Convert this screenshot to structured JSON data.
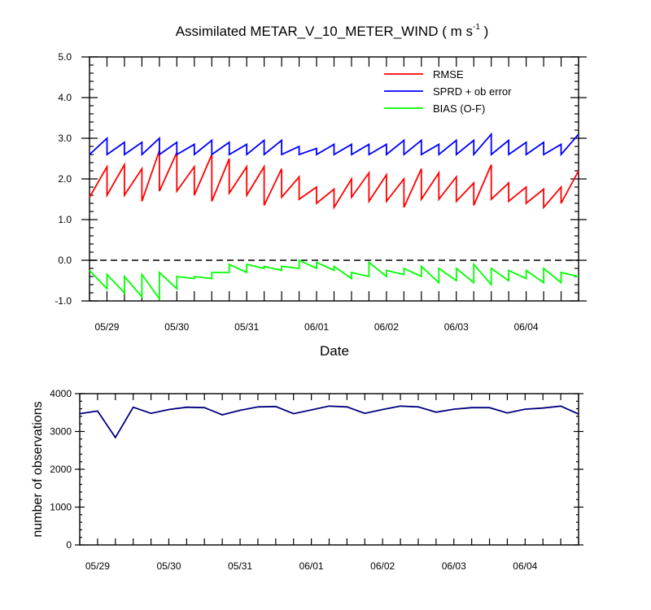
{
  "colors": {
    "rmse": "#ff0000",
    "spread": "#0000ff",
    "bias": "#00ff00",
    "nobs": "#000080",
    "zero_line": "#000000"
  },
  "chart_data": [
    {
      "type": "line",
      "title_main": "Assimilated METAR_V_10_METER_WIND ( m s",
      "title_sup": "-1",
      "title_end": " )",
      "xlabel": "Date",
      "ylabel": "",
      "ylim": [
        -1.0,
        5.0
      ],
      "yticks": [
        -1.0,
        0.0,
        1.0,
        2.0,
        3.0,
        4.0,
        5.0
      ],
      "ytick_labels": [
        "-1.0",
        "0.0",
        "1.0",
        "2.0",
        "3.0",
        "4.0",
        "5.0"
      ],
      "xlim": [
        0,
        28
      ],
      "xtick_positions": [
        1,
        5,
        9,
        13,
        17,
        21,
        25
      ],
      "xtick_labels": [
        "05/29",
        "05/30",
        "05/31",
        "06/01",
        "06/02",
        "06/03",
        "06/04"
      ],
      "zero_line": 0.0,
      "legend": [
        "RMSE",
        "SPRD + ob error",
        "BIAS (O-F)"
      ],
      "series": [
        {
          "name": "RMSE",
          "color_key": "rmse",
          "x": [
            0,
            1,
            1,
            2,
            2,
            3,
            3,
            4,
            4,
            5,
            5,
            6,
            6,
            7,
            7,
            8,
            8,
            9,
            9,
            10,
            10,
            11,
            11,
            12,
            12,
            13,
            13,
            14,
            14,
            15,
            15,
            16,
            16,
            17,
            17,
            18,
            18,
            19,
            19,
            20,
            20,
            21,
            21,
            22,
            22,
            23,
            23,
            24,
            24,
            25,
            25,
            26,
            26,
            27,
            27,
            28
          ],
          "values": [
            1.55,
            2.3,
            1.6,
            2.35,
            1.6,
            2.25,
            1.45,
            2.7,
            1.7,
            2.65,
            1.7,
            2.3,
            1.6,
            2.6,
            1.45,
            2.5,
            1.65,
            2.3,
            1.6,
            2.3,
            1.35,
            2.25,
            1.55,
            2.05,
            1.5,
            1.8,
            1.4,
            1.75,
            1.3,
            2.0,
            1.55,
            2.15,
            1.45,
            2.1,
            1.45,
            2.0,
            1.3,
            2.25,
            1.5,
            2.15,
            1.5,
            2.05,
            1.45,
            1.9,
            1.35,
            2.35,
            1.5,
            1.9,
            1.45,
            1.8,
            1.4,
            1.75,
            1.3,
            1.8,
            1.4,
            2.2
          ]
        },
        {
          "name": "SPRD + ob error",
          "color_key": "spread",
          "x": [
            0,
            1,
            1,
            2,
            2,
            3,
            3,
            4,
            4,
            5,
            5,
            6,
            6,
            7,
            7,
            8,
            8,
            9,
            9,
            10,
            10,
            11,
            11,
            12,
            12,
            13,
            13,
            14,
            14,
            15,
            15,
            16,
            16,
            17,
            17,
            18,
            18,
            19,
            19,
            20,
            20,
            21,
            21,
            22,
            22,
            23,
            23,
            24,
            24,
            25,
            25,
            26,
            26,
            27,
            27,
            28
          ],
          "values": [
            2.6,
            3.0,
            2.6,
            2.9,
            2.6,
            2.9,
            2.6,
            3.0,
            2.6,
            2.9,
            2.6,
            2.85,
            2.6,
            2.95,
            2.6,
            2.9,
            2.6,
            2.85,
            2.6,
            2.95,
            2.6,
            2.95,
            2.6,
            2.8,
            2.6,
            2.75,
            2.6,
            2.85,
            2.6,
            2.85,
            2.6,
            2.85,
            2.6,
            2.85,
            2.6,
            2.95,
            2.6,
            2.95,
            2.6,
            2.85,
            2.6,
            2.95,
            2.6,
            2.95,
            2.6,
            3.1,
            2.6,
            2.95,
            2.6,
            2.9,
            2.6,
            2.9,
            2.6,
            2.85,
            2.6,
            3.1
          ]
        },
        {
          "name": "BIAS (O-F)",
          "color_key": "bias",
          "x": [
            0,
            1,
            1,
            2,
            2,
            3,
            3,
            4,
            4,
            5,
            5,
            6,
            6,
            7,
            7,
            8,
            8,
            9,
            9,
            10,
            10,
            11,
            11,
            12,
            12,
            13,
            13,
            14,
            14,
            15,
            15,
            16,
            16,
            17,
            17,
            18,
            18,
            19,
            19,
            20,
            20,
            21,
            21,
            22,
            22,
            23,
            23,
            24,
            24,
            25,
            25,
            26,
            26,
            27,
            27,
            28
          ],
          "values": [
            -0.25,
            -0.7,
            -0.35,
            -0.8,
            -0.4,
            -0.9,
            -0.35,
            -0.95,
            -0.3,
            -0.7,
            -0.4,
            -0.45,
            -0.4,
            -0.45,
            -0.3,
            -0.3,
            -0.1,
            -0.3,
            -0.1,
            -0.2,
            -0.15,
            -0.25,
            -0.15,
            -0.2,
            0.0,
            -0.2,
            -0.05,
            -0.25,
            -0.15,
            -0.45,
            -0.3,
            -0.4,
            -0.05,
            -0.4,
            -0.25,
            -0.35,
            -0.2,
            -0.4,
            -0.15,
            -0.55,
            -0.2,
            -0.5,
            -0.2,
            -0.55,
            -0.1,
            -0.6,
            -0.2,
            -0.5,
            -0.25,
            -0.45,
            -0.25,
            -0.55,
            -0.2,
            -0.55,
            -0.3,
            -0.4
          ]
        }
      ]
    },
    {
      "type": "line",
      "title": "",
      "xlabel": "",
      "ylabel": "number of observations",
      "ylim": [
        0,
        4000
      ],
      "yticks": [
        0,
        1000,
        2000,
        3000,
        4000
      ],
      "ytick_labels": [
        "0",
        "1000",
        "2000",
        "3000",
        "4000"
      ],
      "xlim": [
        0,
        28
      ],
      "xtick_positions": [
        1,
        5,
        9,
        13,
        17,
        21,
        25
      ],
      "xtick_labels": [
        "05/29",
        "05/30",
        "05/31",
        "06/01",
        "06/02",
        "06/03",
        "06/04"
      ],
      "series": [
        {
          "name": "number of observations",
          "color_key": "nobs",
          "x": [
            0,
            1,
            2,
            3,
            4,
            5,
            6,
            7,
            8,
            9,
            10,
            11,
            12,
            13,
            14,
            15,
            16,
            17,
            18,
            19,
            20,
            21,
            22,
            23,
            24,
            25,
            26,
            27,
            28
          ],
          "values": [
            3470,
            3540,
            2840,
            3640,
            3480,
            3580,
            3640,
            3630,
            3440,
            3560,
            3650,
            3660,
            3470,
            3570,
            3670,
            3650,
            3480,
            3580,
            3670,
            3650,
            3510,
            3590,
            3630,
            3630,
            3490,
            3590,
            3620,
            3670,
            3460
          ]
        }
      ]
    }
  ]
}
